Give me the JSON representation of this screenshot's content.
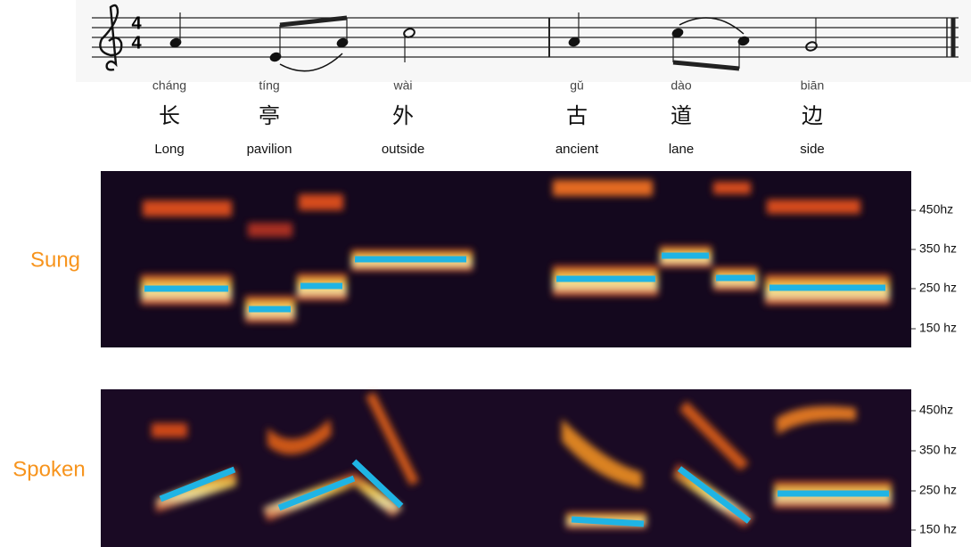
{
  "time_signature": {
    "top": "4",
    "bottom": "4"
  },
  "lyrics": [
    {
      "pinyin": "cháng",
      "hanzi": "长",
      "gloss": "Long"
    },
    {
      "pinyin": "tíng",
      "hanzi": "亭",
      "gloss": "pavilion"
    },
    {
      "pinyin": "wài",
      "hanzi": "外",
      "gloss": "outside"
    },
    {
      "pinyin": "gǔ",
      "hanzi": "古",
      "gloss": "ancient"
    },
    {
      "pinyin": "dào",
      "hanzi": "道",
      "gloss": "lane"
    },
    {
      "pinyin": "biān",
      "hanzi": "边",
      "gloss": "side"
    }
  ],
  "panels": [
    {
      "label": "Sung",
      "ticks": [
        "450hz",
        "350 hz",
        "250 hz",
        "150 hz"
      ]
    },
    {
      "label": "Spoken",
      "ticks": [
        "450hz",
        "350 hz",
        "250 hz",
        "150 hz"
      ]
    }
  ]
}
